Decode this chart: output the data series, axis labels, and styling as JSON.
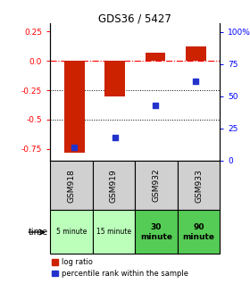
{
  "title": "GDS36 / 5427",
  "samples": [
    "GSM918",
    "GSM919",
    "GSM932",
    "GSM933"
  ],
  "time_labels": [
    "5 minute",
    "15 minute",
    "30\nminute",
    "90\nminute"
  ],
  "time_colors": [
    "#bbffbb",
    "#bbffbb",
    "#55cc55",
    "#55cc55"
  ],
  "log_ratios": [
    -0.78,
    -0.3,
    0.07,
    0.12
  ],
  "percentile_ranks": [
    1,
    10,
    37,
    58
  ],
  "bar_color": "#cc2200",
  "dot_color": "#2233cc",
  "ylim_left": [
    -0.85,
    0.32
  ],
  "ylim_right": [
    0,
    106.67
  ],
  "yticks_left": [
    0.25,
    0.0,
    -0.25,
    -0.5,
    -0.75
  ],
  "yticks_right": [
    100,
    75,
    50,
    25,
    0
  ],
  "background_color": "#ffffff",
  "legend_red": "log ratio",
  "legend_blue": "percentile rank within the sample",
  "gsm_bg": "#d0d0d0",
  "bar_width": 0.5
}
